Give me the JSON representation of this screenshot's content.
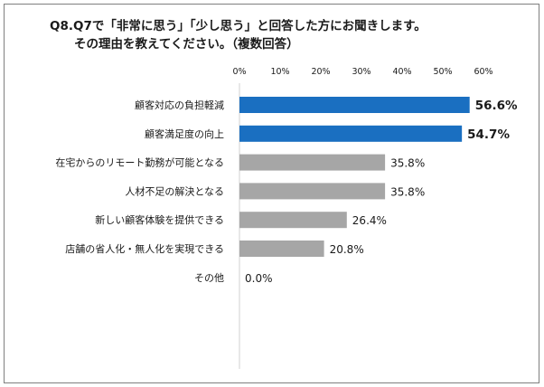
{
  "title": {
    "line1": "Q8.Q7で「非常に思う」「少し思う」と回答した方にお聞きします。",
    "line2": "その理由を教えてください。（複数回答）"
  },
  "colors": {
    "highlight": "#1a6fc1",
    "default": "#a6a6a6"
  },
  "chart_data": {
    "type": "bar",
    "orientation": "horizontal",
    "title": "Q8.Q7で「非常に思う」「少し思う」と回答した方にお聞きします。その理由を教えてください。（複数回答）",
    "xlim": [
      0,
      60
    ],
    "xticks": [
      "0%",
      "10%",
      "20%",
      "30%",
      "40%",
      "50%",
      "60%"
    ],
    "grid": false,
    "categories": [
      "顧客対応の負担軽減",
      "顧客満足度の向上",
      "在宅からのリモート勤務が可能となる",
      "人材不足の解決となる",
      "新しい顧客体験を提供できる",
      "店舗の省人化・無人化を実現できる",
      "その他"
    ],
    "values": [
      56.6,
      54.7,
      35.8,
      35.8,
      26.4,
      20.8,
      0.0
    ],
    "value_labels": [
      "56.6%",
      "54.7%",
      "35.8%",
      "35.8%",
      "26.4%",
      "20.8%",
      "0.0%"
    ],
    "highlighted": [
      true,
      true,
      false,
      false,
      false,
      false,
      false
    ]
  }
}
